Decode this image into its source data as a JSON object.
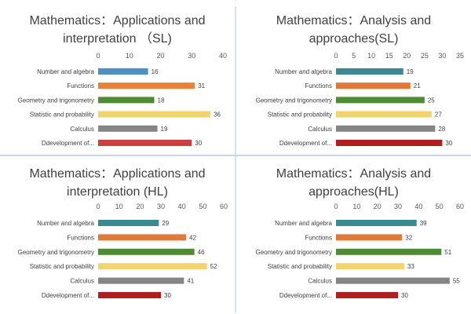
{
  "chart_data": [
    {
      "type": "bar",
      "orientation": "horizontal",
      "title_lines": [
        "Mathematics：Applications and",
        "interpretation （SL)"
      ],
      "categories": [
        "Number and algebra",
        "Functions",
        "Geometry and trigonometry",
        "Statistic and probability",
        "Calculus",
        "Ddevelopment of..."
      ],
      "values": [
        16,
        31,
        18,
        36,
        19,
        30
      ],
      "colors": [
        "#4a90c4",
        "#e8823a",
        "#4e8c34",
        "#f5d26a",
        "#858585",
        "#c9403f"
      ],
      "xlim": [
        0,
        40
      ],
      "xticks": [
        "0",
        "10",
        "20",
        "30",
        "40"
      ],
      "grid": false,
      "legend": "none"
    },
    {
      "type": "bar",
      "orientation": "horizontal",
      "title_lines": [
        "Mathematics：Analysis and",
        "approaches(SL)"
      ],
      "categories": [
        "Number and algebra",
        "Functions",
        "Geometry and trigonometry",
        "Statistic and probability",
        "Calculus",
        "Ddevelopment of..."
      ],
      "values": [
        19,
        21,
        25,
        27,
        28,
        30
      ],
      "colors": [
        "#3a8a94",
        "#e0793a",
        "#4e8c34",
        "#f5d26a",
        "#858585",
        "#b01f1f"
      ],
      "xlim": [
        0,
        35
      ],
      "xticks": [
        "0",
        "5",
        "10",
        "15",
        "20",
        "25",
        "30",
        "35"
      ],
      "grid": false,
      "legend": "none"
    },
    {
      "type": "bar",
      "orientation": "horizontal",
      "title_lines": [
        "Mathematics：Applications and",
        "interpretation (HL)"
      ],
      "categories": [
        "Number and algebra",
        "Functions",
        "Geometry and trigonometry",
        "Statistic and probability",
        "Calculus",
        "Ddevelopment of..."
      ],
      "values": [
        29,
        42,
        46,
        52,
        41,
        30
      ],
      "colors": [
        "#3a8a94",
        "#e0793a",
        "#4e8c34",
        "#f5d26a",
        "#858585",
        "#b01f1f"
      ],
      "xlim": [
        0,
        60
      ],
      "xticks": [
        "0",
        "10",
        "20",
        "30",
        "40",
        "50",
        "60"
      ],
      "grid": false,
      "legend": "none"
    },
    {
      "type": "bar",
      "orientation": "horizontal",
      "title_lines": [
        "Mathematics：Analysis and",
        "approaches(HL)"
      ],
      "categories": [
        "Number and algebra",
        "Functions",
        "Geometry and trigonometry",
        "Statistic and probability",
        "Calculus",
        "Ddevelopment of..."
      ],
      "values": [
        39,
        32,
        51,
        33,
        55,
        30
      ],
      "colors": [
        "#3a8a94",
        "#e0793a",
        "#4e8c34",
        "#f5d26a",
        "#858585",
        "#b01f1f"
      ],
      "xlim": [
        0,
        60
      ],
      "xticks": [
        "0",
        "10",
        "20",
        "30",
        "40",
        "50",
        "60"
      ],
      "grid": false,
      "legend": "none"
    }
  ]
}
